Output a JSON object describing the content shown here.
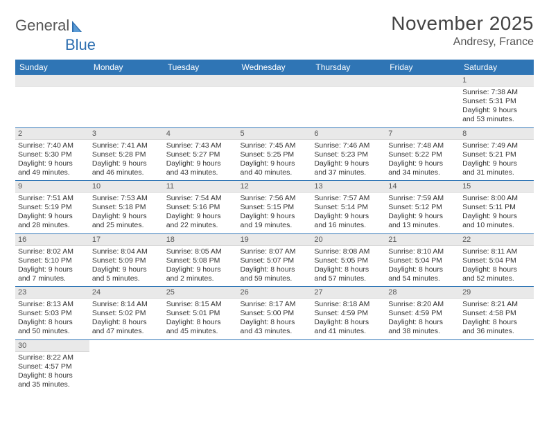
{
  "logo": {
    "general": "General",
    "blue": "Blue"
  },
  "title": "November 2025",
  "location": "Andresy, France",
  "colors": {
    "header_bg": "#2f75b5",
    "header_fg": "#ffffff",
    "daynum_bg": "#e9e9e9",
    "border": "#2f75b5",
    "text": "#333333"
  },
  "dayHeaders": [
    "Sunday",
    "Monday",
    "Tuesday",
    "Wednesday",
    "Thursday",
    "Friday",
    "Saturday"
  ],
  "weeks": [
    [
      {
        "num": "",
        "sunrise": "",
        "sunset": "",
        "daylight": ""
      },
      {
        "num": "",
        "sunrise": "",
        "sunset": "",
        "daylight": ""
      },
      {
        "num": "",
        "sunrise": "",
        "sunset": "",
        "daylight": ""
      },
      {
        "num": "",
        "sunrise": "",
        "sunset": "",
        "daylight": ""
      },
      {
        "num": "",
        "sunrise": "",
        "sunset": "",
        "daylight": ""
      },
      {
        "num": "",
        "sunrise": "",
        "sunset": "",
        "daylight": ""
      },
      {
        "num": "1",
        "sunrise": "Sunrise: 7:38 AM",
        "sunset": "Sunset: 5:31 PM",
        "daylight": "Daylight: 9 hours and 53 minutes."
      }
    ],
    [
      {
        "num": "2",
        "sunrise": "Sunrise: 7:40 AM",
        "sunset": "Sunset: 5:30 PM",
        "daylight": "Daylight: 9 hours and 49 minutes."
      },
      {
        "num": "3",
        "sunrise": "Sunrise: 7:41 AM",
        "sunset": "Sunset: 5:28 PM",
        "daylight": "Daylight: 9 hours and 46 minutes."
      },
      {
        "num": "4",
        "sunrise": "Sunrise: 7:43 AM",
        "sunset": "Sunset: 5:27 PM",
        "daylight": "Daylight: 9 hours and 43 minutes."
      },
      {
        "num": "5",
        "sunrise": "Sunrise: 7:45 AM",
        "sunset": "Sunset: 5:25 PM",
        "daylight": "Daylight: 9 hours and 40 minutes."
      },
      {
        "num": "6",
        "sunrise": "Sunrise: 7:46 AM",
        "sunset": "Sunset: 5:23 PM",
        "daylight": "Daylight: 9 hours and 37 minutes."
      },
      {
        "num": "7",
        "sunrise": "Sunrise: 7:48 AM",
        "sunset": "Sunset: 5:22 PM",
        "daylight": "Daylight: 9 hours and 34 minutes."
      },
      {
        "num": "8",
        "sunrise": "Sunrise: 7:49 AM",
        "sunset": "Sunset: 5:21 PM",
        "daylight": "Daylight: 9 hours and 31 minutes."
      }
    ],
    [
      {
        "num": "9",
        "sunrise": "Sunrise: 7:51 AM",
        "sunset": "Sunset: 5:19 PM",
        "daylight": "Daylight: 9 hours and 28 minutes."
      },
      {
        "num": "10",
        "sunrise": "Sunrise: 7:53 AM",
        "sunset": "Sunset: 5:18 PM",
        "daylight": "Daylight: 9 hours and 25 minutes."
      },
      {
        "num": "11",
        "sunrise": "Sunrise: 7:54 AM",
        "sunset": "Sunset: 5:16 PM",
        "daylight": "Daylight: 9 hours and 22 minutes."
      },
      {
        "num": "12",
        "sunrise": "Sunrise: 7:56 AM",
        "sunset": "Sunset: 5:15 PM",
        "daylight": "Daylight: 9 hours and 19 minutes."
      },
      {
        "num": "13",
        "sunrise": "Sunrise: 7:57 AM",
        "sunset": "Sunset: 5:14 PM",
        "daylight": "Daylight: 9 hours and 16 minutes."
      },
      {
        "num": "14",
        "sunrise": "Sunrise: 7:59 AM",
        "sunset": "Sunset: 5:12 PM",
        "daylight": "Daylight: 9 hours and 13 minutes."
      },
      {
        "num": "15",
        "sunrise": "Sunrise: 8:00 AM",
        "sunset": "Sunset: 5:11 PM",
        "daylight": "Daylight: 9 hours and 10 minutes."
      }
    ],
    [
      {
        "num": "16",
        "sunrise": "Sunrise: 8:02 AM",
        "sunset": "Sunset: 5:10 PM",
        "daylight": "Daylight: 9 hours and 7 minutes."
      },
      {
        "num": "17",
        "sunrise": "Sunrise: 8:04 AM",
        "sunset": "Sunset: 5:09 PM",
        "daylight": "Daylight: 9 hours and 5 minutes."
      },
      {
        "num": "18",
        "sunrise": "Sunrise: 8:05 AM",
        "sunset": "Sunset: 5:08 PM",
        "daylight": "Daylight: 9 hours and 2 minutes."
      },
      {
        "num": "19",
        "sunrise": "Sunrise: 8:07 AM",
        "sunset": "Sunset: 5:07 PM",
        "daylight": "Daylight: 8 hours and 59 minutes."
      },
      {
        "num": "20",
        "sunrise": "Sunrise: 8:08 AM",
        "sunset": "Sunset: 5:05 PM",
        "daylight": "Daylight: 8 hours and 57 minutes."
      },
      {
        "num": "21",
        "sunrise": "Sunrise: 8:10 AM",
        "sunset": "Sunset: 5:04 PM",
        "daylight": "Daylight: 8 hours and 54 minutes."
      },
      {
        "num": "22",
        "sunrise": "Sunrise: 8:11 AM",
        "sunset": "Sunset: 5:04 PM",
        "daylight": "Daylight: 8 hours and 52 minutes."
      }
    ],
    [
      {
        "num": "23",
        "sunrise": "Sunrise: 8:13 AM",
        "sunset": "Sunset: 5:03 PM",
        "daylight": "Daylight: 8 hours and 50 minutes."
      },
      {
        "num": "24",
        "sunrise": "Sunrise: 8:14 AM",
        "sunset": "Sunset: 5:02 PM",
        "daylight": "Daylight: 8 hours and 47 minutes."
      },
      {
        "num": "25",
        "sunrise": "Sunrise: 8:15 AM",
        "sunset": "Sunset: 5:01 PM",
        "daylight": "Daylight: 8 hours and 45 minutes."
      },
      {
        "num": "26",
        "sunrise": "Sunrise: 8:17 AM",
        "sunset": "Sunset: 5:00 PM",
        "daylight": "Daylight: 8 hours and 43 minutes."
      },
      {
        "num": "27",
        "sunrise": "Sunrise: 8:18 AM",
        "sunset": "Sunset: 4:59 PM",
        "daylight": "Daylight: 8 hours and 41 minutes."
      },
      {
        "num": "28",
        "sunrise": "Sunrise: 8:20 AM",
        "sunset": "Sunset: 4:59 PM",
        "daylight": "Daylight: 8 hours and 38 minutes."
      },
      {
        "num": "29",
        "sunrise": "Sunrise: 8:21 AM",
        "sunset": "Sunset: 4:58 PM",
        "daylight": "Daylight: 8 hours and 36 minutes."
      }
    ],
    [
      {
        "num": "30",
        "sunrise": "Sunrise: 8:22 AM",
        "sunset": "Sunset: 4:57 PM",
        "daylight": "Daylight: 8 hours and 35 minutes."
      },
      {
        "num": "",
        "sunrise": "",
        "sunset": "",
        "daylight": ""
      },
      {
        "num": "",
        "sunrise": "",
        "sunset": "",
        "daylight": ""
      },
      {
        "num": "",
        "sunrise": "",
        "sunset": "",
        "daylight": ""
      },
      {
        "num": "",
        "sunrise": "",
        "sunset": "",
        "daylight": ""
      },
      {
        "num": "",
        "sunrise": "",
        "sunset": "",
        "daylight": ""
      },
      {
        "num": "",
        "sunrise": "",
        "sunset": "",
        "daylight": ""
      }
    ]
  ]
}
